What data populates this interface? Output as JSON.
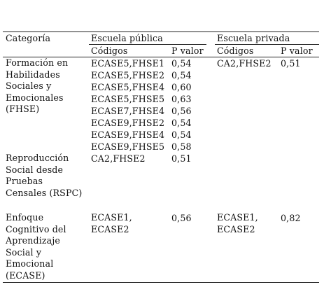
{
  "header": {
    "categoria": "Categoría",
    "publica": "Escuela pública",
    "privada": "Escuela privada",
    "codigos_pub": "Códigos",
    "pvalor_pub": "P valor",
    "codigos_priv": "Códigos",
    "pvalor_priv": "P valor"
  },
  "rows": [
    {
      "category": "Formación en Habilidades Sociales y Emocionales (FHSE)",
      "publica": [
        {
          "code": "ECASE5,FHSE1",
          "p": "0,54"
        },
        {
          "code": "ECASE5,FHSE2",
          "p": "0,54"
        },
        {
          "code": "ECASE5,FHSE4",
          "p": "0,60"
        },
        {
          "code": "ECASE5,FHSE5",
          "p": "0,63"
        },
        {
          "code": "ECASE7,FHSE4",
          "p": "0,56"
        },
        {
          "code": "ECASE9,FHSE2",
          "p": "0,54"
        },
        {
          "code": "ECASE9,FHSE4",
          "p": "0,54"
        },
        {
          "code": "ECASE9,FHSE5",
          "p": "0,58"
        }
      ],
      "privada": [
        {
          "code": "CA2,FHSE2",
          "p": "0,51"
        }
      ]
    },
    {
      "category": "Reproducción Social desde Pruebas Censales (RSPC)",
      "publica": [
        {
          "code": "CA2,FHSE2",
          "p": "0,51"
        }
      ],
      "privada": []
    },
    {
      "category": "Enfoque Cognitivo del Aprendizaje Social y Emocional (ECASE)",
      "publica": [
        {
          "code": "ECASE1,\nECASE2",
          "p": "0,56"
        }
      ],
      "privada": [
        {
          "code": "ECASE1,\nECASE2",
          "p": "0,82"
        }
      ]
    }
  ]
}
